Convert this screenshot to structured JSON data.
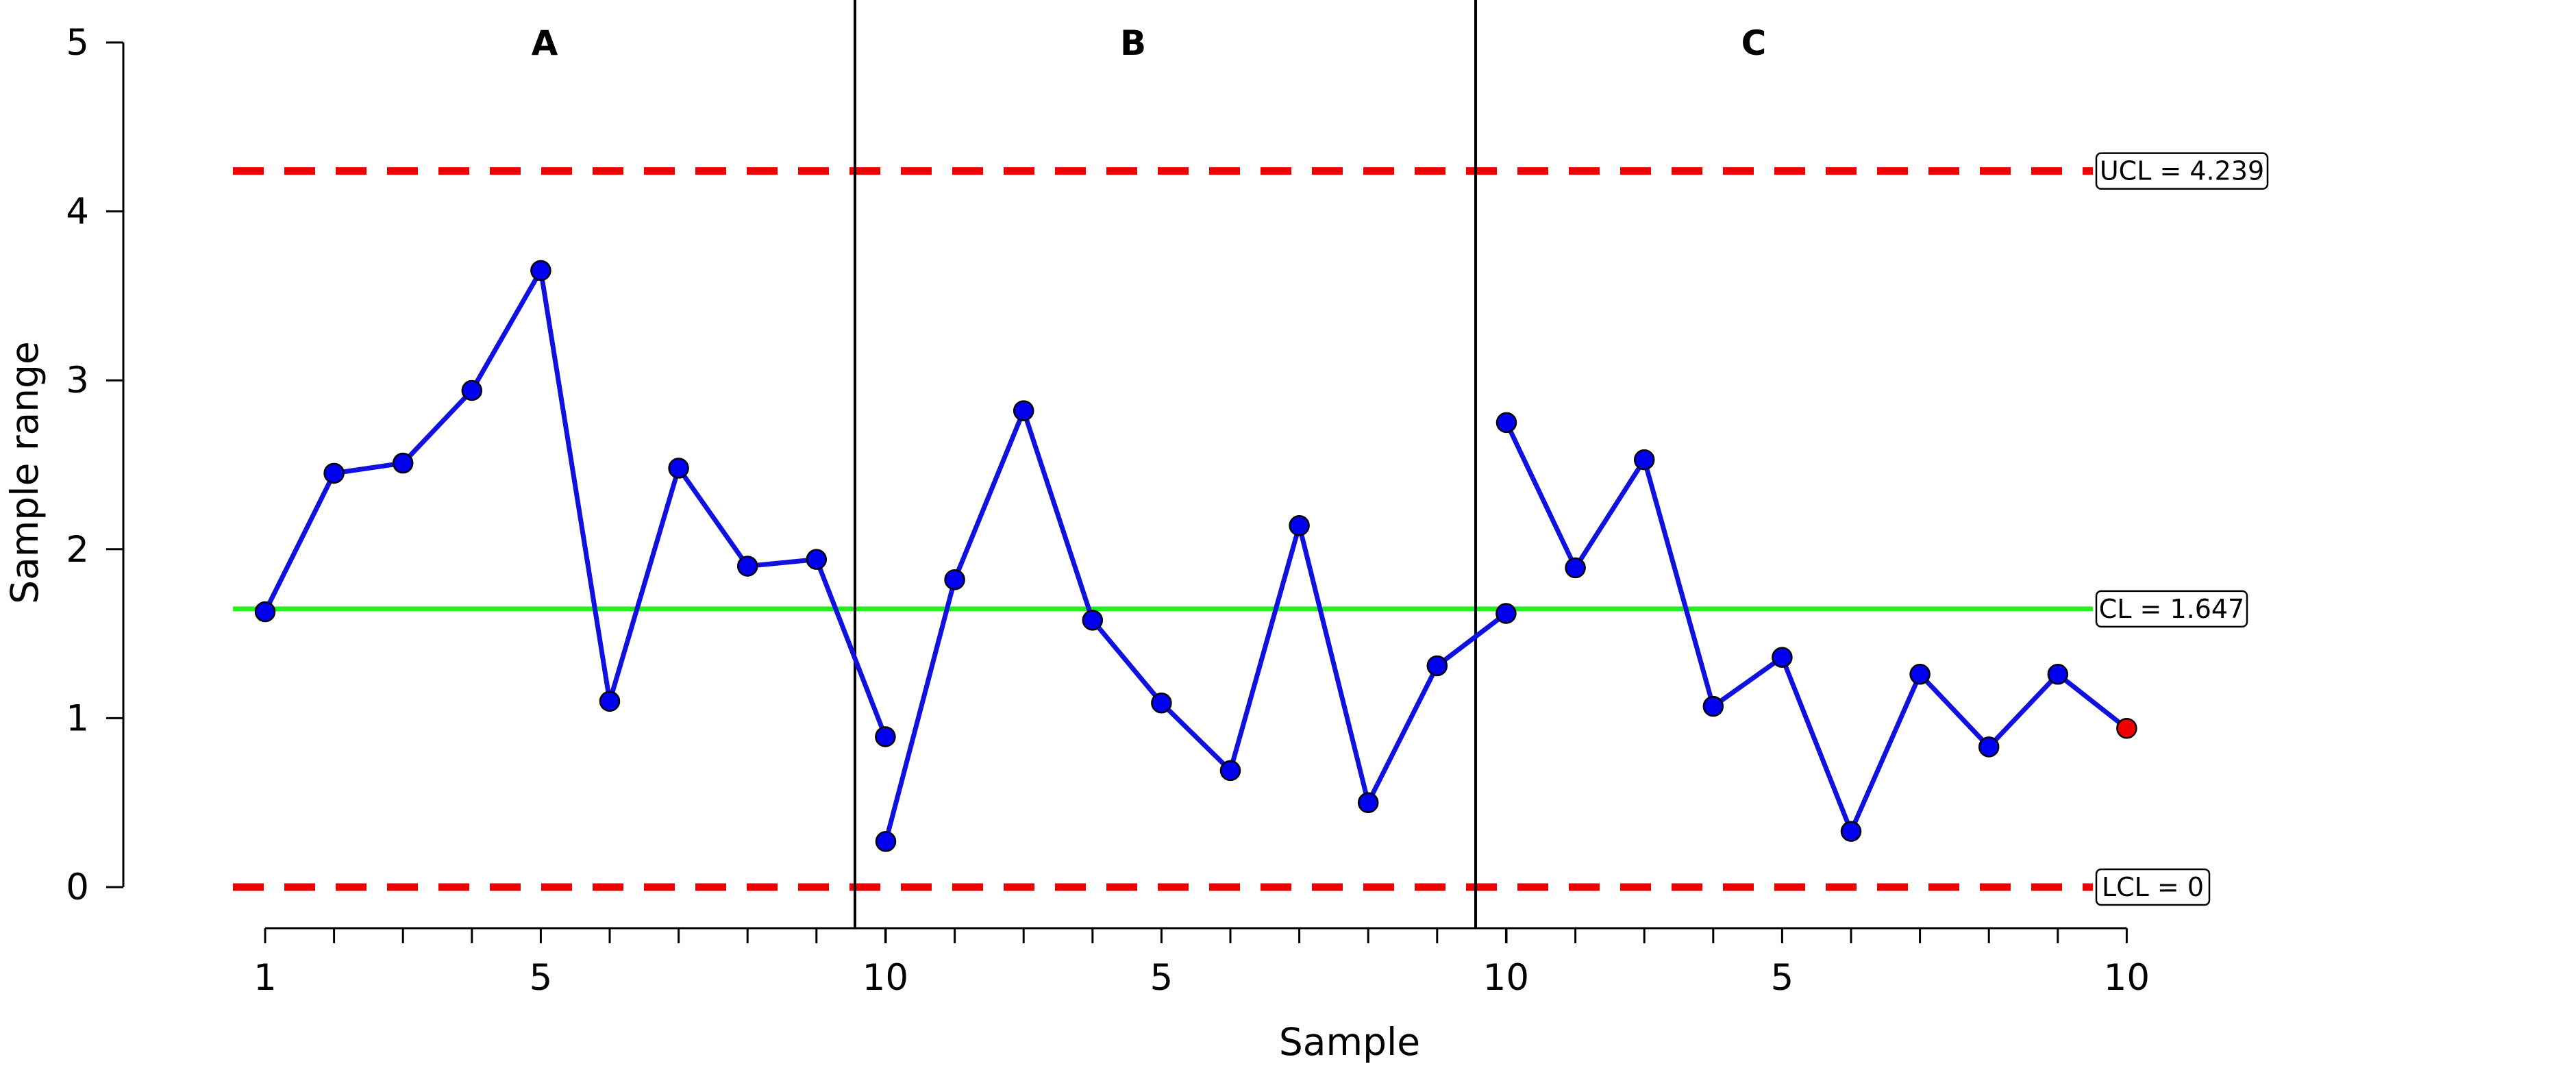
{
  "chart_data": {
    "type": "line",
    "xlabel": "Sample",
    "ylabel": "Sample range",
    "ylim": [
      0,
      5
    ],
    "yticks": [
      "0",
      "1",
      "2",
      "3",
      "4",
      "5"
    ],
    "panels": [
      {
        "label": "A",
        "x": [
          1,
          2,
          3,
          4,
          5,
          6,
          7,
          8,
          9,
          10
        ],
        "xtick_labels": [
          "1",
          "5",
          "10"
        ],
        "values": [
          1.63,
          2.45,
          2.51,
          2.94,
          3.65,
          1.1,
          2.48,
          1.9,
          1.94,
          0.89
        ]
      },
      {
        "label": "B",
        "x": [
          1,
          2,
          3,
          4,
          5,
          6,
          7,
          8,
          9,
          10
        ],
        "xtick_labels": [
          "5",
          "10"
        ],
        "values": [
          0.27,
          1.82,
          2.82,
          1.58,
          1.09,
          0.69,
          2.14,
          0.5,
          1.31,
          1.62
        ]
      },
      {
        "label": "C",
        "x": [
          1,
          2,
          3,
          4,
          5,
          6,
          7,
          8,
          9,
          10
        ],
        "xtick_labels": [
          "5",
          "10"
        ],
        "values": [
          2.75,
          1.89,
          2.53,
          1.07,
          1.36,
          0.33,
          1.26,
          0.83,
          1.26,
          0.94
        ]
      }
    ],
    "limits": {
      "ucl": 4.239,
      "ucl_label": "UCL = 4.239",
      "cl": 1.647,
      "cl_label": "CL = 1.647",
      "lcl": 0,
      "lcl_label": "LCL = 0"
    },
    "colors": {
      "series_line": "#1010e0",
      "point_fill": "#0000ee",
      "point_out_of_control": "#ee0000",
      "center_line": "#22ee22",
      "control_limits": "#ee0000"
    },
    "highlighted_point": {
      "panel": "C",
      "x": 10
    }
  }
}
